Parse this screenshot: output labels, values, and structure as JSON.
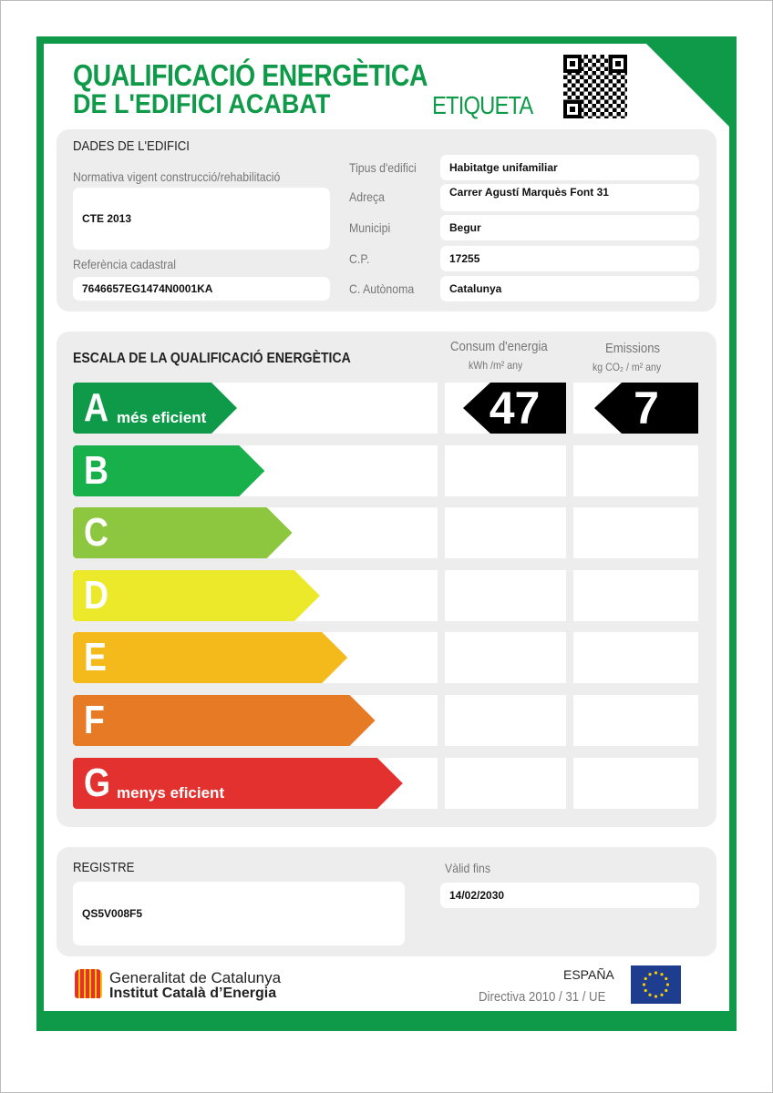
{
  "header": {
    "title_line1": "QUALIFICACIÓ ENERGÈTICA",
    "title_line2": "DE L'EDIFICI ACABAT",
    "label": "ETIQUETA"
  },
  "building": {
    "heading": "DADES DE L'EDIFICI",
    "regulation_label": "Normativa vigent construcció/rehabilitació",
    "regulation": "CTE 2013",
    "cadastral_label": "Referència cadastral",
    "cadastral": "7646657EG1474N0001KA",
    "fields": [
      {
        "label": "Tipus d'edifici",
        "value": "Habitatge unifamiliar"
      },
      {
        "label": "Adreça",
        "value": "Carrer Agustí Marquès Font 31"
      },
      {
        "label": "Municipi",
        "value": "Begur"
      },
      {
        "label": "C.P.",
        "value": "17255"
      },
      {
        "label": "C. Autònoma",
        "value": "Catalunya"
      }
    ]
  },
  "scale": {
    "heading": "ESCALA DE LA QUALIFICACIÓ ENERGÈTICA",
    "energy_title": "Consum d'energia",
    "energy_unit": "kWh /m² any",
    "emissions_title": "Emissions",
    "emissions_unit": "kg CO₂ / m² any",
    "ratings": [
      {
        "letter": "A",
        "text": "més eficient",
        "color": "#0f9a4a"
      },
      {
        "letter": "B",
        "text": "",
        "color": "#17b04b"
      },
      {
        "letter": "C",
        "text": "",
        "color": "#8dc63f"
      },
      {
        "letter": "D",
        "text": "",
        "color": "#ece92b"
      },
      {
        "letter": "E",
        "text": "",
        "color": "#f4b91b"
      },
      {
        "letter": "F",
        "text": "",
        "color": "#e77a25"
      },
      {
        "letter": "G",
        "text": "menys eficient",
        "color": "#e2312f"
      }
    ],
    "rating": "A",
    "energy_value": "47",
    "emissions_value": "7"
  },
  "registry": {
    "label": "REGISTRE",
    "value": "QS5V008F5",
    "valid_label": "Vàlid fins",
    "valid_value": "14/02/2030"
  },
  "footer": {
    "org1": "Generalitat de Catalunya",
    "org2": "Institut Català d’Energia",
    "country": "ESPAÑA",
    "directive": "Directiva 2010 / 31 / UE"
  }
}
